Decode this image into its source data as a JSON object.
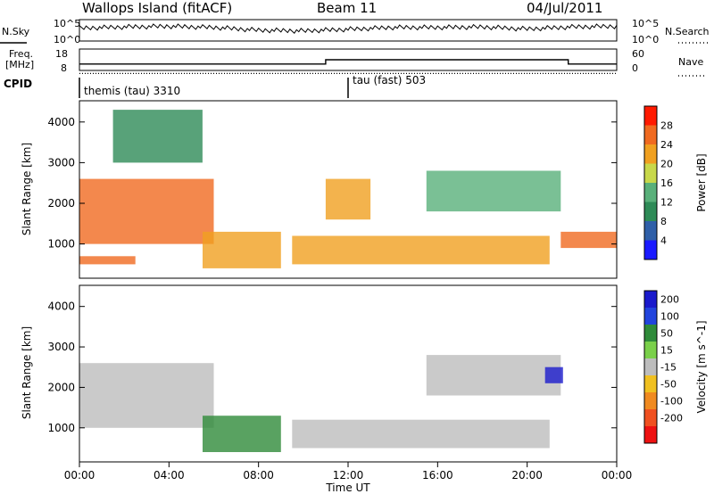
{
  "header": {
    "station": "Wallops Island (fitACF)",
    "beam": "Beam 11",
    "date": "04/Jul/2011"
  },
  "aux_labels": {
    "nsky": "N.Sky",
    "nsearch": "N.Search",
    "freq_line1": "Freq.",
    "freq_line2": "[MHz]",
    "nave": "Nave",
    "cpid": "CPID",
    "cpid_mode1": "themis (tau) 3310",
    "cpid_mode2": "tau (fast) 503",
    "noise_top_left": "10^5",
    "noise_bottom_left": "10^0",
    "noise_top_right": "10^5",
    "noise_bottom_right": "10^0",
    "freq_top": "18",
    "freq_bottom": "8",
    "nave_top": "60",
    "nave_bottom": "0"
  },
  "chart_data": [
    {
      "type": "line",
      "panel": "noise",
      "x": [
        "00:00",
        "02:00",
        "04:00",
        "06:00",
        "08:00",
        "10:00",
        "12:00",
        "14:00",
        "16:00",
        "18:00",
        "20:00",
        "22:00",
        "24:00"
      ],
      "series": [
        {
          "name": "N.Sky",
          "values": [
            1000,
            2000,
            3000,
            1500,
            300,
            200,
            500,
            1500,
            1500,
            2000,
            600,
            2000,
            3000
          ]
        }
      ],
      "ylim": [
        1,
        100000
      ],
      "log_scale": true
    },
    {
      "type": "line",
      "panel": "frequency",
      "x": [
        "00:00",
        "11:00",
        "11:00",
        "21:50",
        "21:50",
        "24:00"
      ],
      "series": [
        {
          "name": "Freq.",
          "values": [
            10.8,
            10.8,
            13.0,
            13.0,
            10.8,
            10.8
          ]
        },
        {
          "name": "Nave",
          "values": [
            6,
            6,
            6,
            6,
            6,
            6
          ]
        }
      ],
      "ylim": [
        8,
        18
      ]
    },
    {
      "type": "heatmap",
      "title": "",
      "ylabel": "Slant Range [km]",
      "colorbar_label": "Power [dB]",
      "colorbar_ticks": [
        4,
        8,
        12,
        16,
        20,
        24,
        28
      ],
      "colors": [
        "#1a1aff",
        "#2f5fa8",
        "#2e8b57",
        "#59b07a",
        "#c8d84a",
        "#f0a020",
        "#f06a20",
        "#ff1a00"
      ],
      "y_ticks": [
        1000,
        2000,
        3000,
        4000
      ],
      "ylim": [
        180,
        4500
      ],
      "xlim_hours": [
        0,
        24
      ],
      "echo_bands": [
        {
          "label": "2",
          "x_start": 0.0,
          "x_end": 6.0,
          "range_start": 1000,
          "range_end": 2600,
          "power_db": 24
        },
        {
          "label": "1",
          "x_start": 0.0,
          "x_end": 2.5,
          "range_start": 500,
          "range_end": 700,
          "power_db": 26
        },
        {
          "label": "3",
          "x_start": 5.5,
          "x_end": 9.0,
          "range_start": 400,
          "range_end": 1300,
          "power_db": 22
        },
        {
          "label": "4",
          "x_start": 9.5,
          "x_end": 21.0,
          "range_start": 500,
          "range_end": 1200,
          "power_db": 22
        },
        {
          "label": "5",
          "x_start": 11.0,
          "x_end": 13.0,
          "range_start": 1600,
          "range_end": 2600,
          "power_db": 22
        },
        {
          "label": "6",
          "x_start": 15.5,
          "x_end": 21.5,
          "range_start": 1800,
          "range_end": 2800,
          "power_db": 14
        },
        {
          "label": "7",
          "x_start": 21.5,
          "x_end": 24.0,
          "range_start": 900,
          "range_end": 1300,
          "power_db": 26
        },
        {
          "label": "8",
          "x_start": 1.5,
          "x_end": 5.5,
          "range_start": 3000,
          "range_end": 4300,
          "power_db": 8
        }
      ]
    },
    {
      "type": "heatmap",
      "title": "",
      "ylabel": "Slant Range [km]",
      "xlabel": "Time UT",
      "colorbar_label": "Velocity [m s^-1]",
      "colorbar_ticks": [
        200,
        100,
        50,
        15,
        -15,
        -50,
        -100,
        -200
      ],
      "colors": [
        "#1a1acc",
        "#2244dd",
        "#2f8b3a",
        "#7ad04a",
        "#bdbdbd",
        "#f0c020",
        "#f08a20",
        "#f05020",
        "#ee1111"
      ],
      "y_ticks": [
        1000,
        2000,
        3000,
        4000
      ],
      "ylim": [
        180,
        4500
      ],
      "xlim_hours": [
        0,
        24
      ],
      "x_tick_labels": [
        "00:00",
        "04:00",
        "08:00",
        "12:00",
        "16:00",
        "20:00",
        "00:00"
      ],
      "ground_scatter_color": "#bdbdbd",
      "echo_bands": [
        {
          "label": "2",
          "x_start": 0.0,
          "x_end": 6.0,
          "range_start": 1000,
          "range_end": 2600,
          "velocity": 0
        },
        {
          "label": "3",
          "x_start": 5.5,
          "x_end": 9.0,
          "range_start": 400,
          "range_end": 1300,
          "velocity": 60
        },
        {
          "label": "4",
          "x_start": 9.5,
          "x_end": 21.0,
          "range_start": 500,
          "range_end": 1200,
          "velocity": 0
        },
        {
          "label": "6",
          "x_start": 15.5,
          "x_end": 21.5,
          "range_start": 1800,
          "range_end": 2800,
          "velocity": 0
        },
        {
          "label": "9",
          "x_start": 20.8,
          "x_end": 21.6,
          "range_start": 2100,
          "range_end": 2500,
          "velocity": 200
        }
      ]
    }
  ]
}
